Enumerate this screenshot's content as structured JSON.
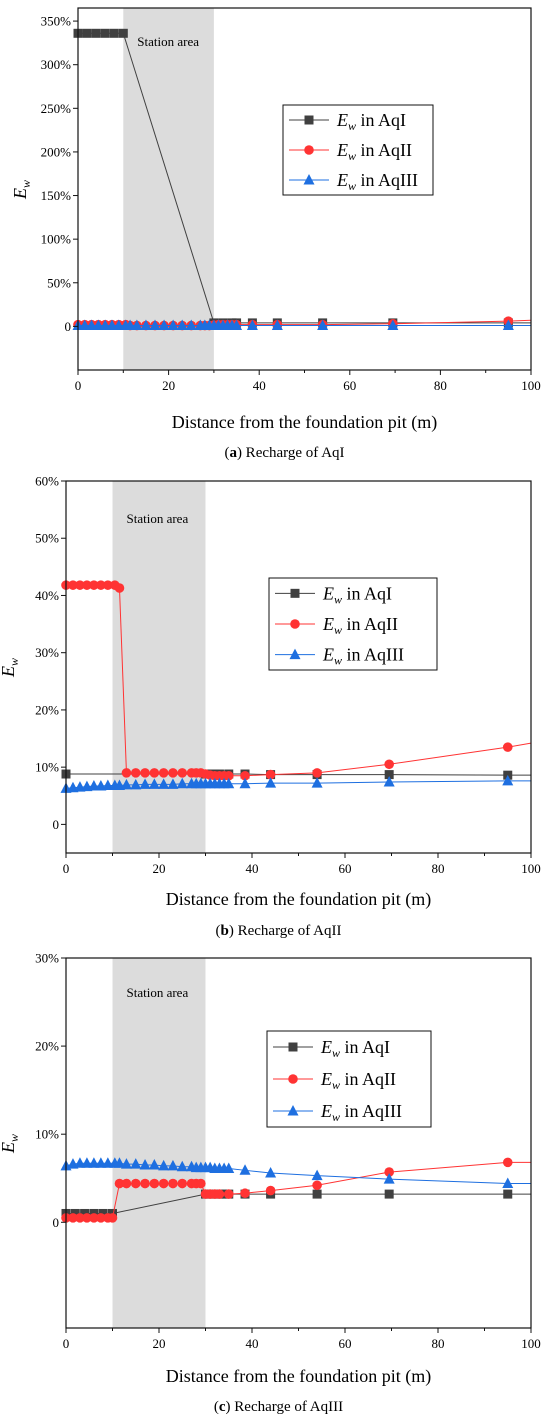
{
  "colors": {
    "aqI": "#404040",
    "aqII": "#ff3333",
    "aqIII": "#1e6fe0",
    "station": "#dcdcdc",
    "axis": "#111111"
  },
  "chart_data": [
    {
      "type": "line",
      "caption_label": "(a)",
      "caption_text": "Recharge of AqI",
      "station_label": "Station area",
      "station_range": [
        10,
        30
      ],
      "xlabel": "Distance from the foundation pit (m)",
      "ylabel_main": "E",
      "ylabel_sub": "w",
      "xlim": [
        0,
        100
      ],
      "ylim": [
        -50,
        365
      ],
      "xticks": [
        "0",
        "20",
        "40",
        "60",
        "80",
        "100"
      ],
      "yticks": [
        {
          "v": 0,
          "l": "0"
        },
        {
          "v": 50,
          "l": "50%"
        },
        {
          "v": 100,
          "l": "100%"
        },
        {
          "v": 150,
          "l": "150%"
        },
        {
          "v": 200,
          "l": "200%"
        },
        {
          "v": 250,
          "l": "250%"
        },
        {
          "v": 300,
          "l": "300%"
        },
        {
          "v": 350,
          "l": "350%"
        }
      ],
      "legend_position": "upper-right",
      "series": [
        {
          "name": "AqI",
          "marker": "square",
          "x": [
            0,
            2,
            4,
            6,
            8,
            10,
            30,
            32,
            34,
            35,
            38.5,
            44,
            54,
            69.5,
            95,
            100
          ],
          "y": [
            336,
            336,
            336,
            336,
            336,
            336,
            4,
            4,
            4,
            4,
            4,
            4,
            4,
            4,
            4,
            4
          ]
        },
        {
          "name": "AqII",
          "marker": "circle",
          "x": [
            0,
            1.5,
            3,
            4.5,
            6,
            7.5,
            9,
            10.5,
            11.5,
            13,
            15,
            17,
            19,
            21,
            23,
            25,
            27,
            28,
            29,
            30,
            31,
            32,
            33,
            34,
            35,
            38.5,
            44,
            54,
            69.5,
            95,
            100
          ],
          "y": [
            2,
            2,
            2,
            2,
            2,
            2,
            2,
            2,
            1,
            1,
            1,
            1,
            1,
            1,
            1,
            1,
            1,
            1,
            1,
            1.5,
            2,
            2,
            2,
            2,
            2,
            2,
            2,
            2,
            3,
            6,
            7
          ]
        },
        {
          "name": "AqIII",
          "marker": "triangle",
          "x": [
            0,
            1.5,
            3,
            4.5,
            6,
            7.5,
            9,
            10.5,
            11.5,
            13,
            15,
            17,
            19,
            21,
            23,
            25,
            27,
            28,
            29,
            30,
            31,
            32,
            33,
            34,
            35,
            38.5,
            44,
            54,
            69.5,
            95,
            100
          ],
          "y": [
            1,
            1,
            1,
            1,
            1,
            1,
            1,
            1,
            1,
            1,
            1,
            1,
            1,
            1,
            1,
            1,
            1,
            1,
            1,
            1,
            1,
            1,
            1,
            1,
            1,
            1,
            1,
            1,
            1,
            1,
            1
          ]
        }
      ]
    },
    {
      "type": "line",
      "caption_label": "(b)",
      "caption_text": "Recharge of AqII",
      "station_label": "Station area",
      "station_range": [
        10,
        30
      ],
      "xlabel": "Distance from the foundation pit (m)",
      "ylabel_main": "E",
      "ylabel_sub": "w",
      "xlim": [
        0,
        100
      ],
      "ylim": [
        -5,
        60
      ],
      "xticks": [
        "0",
        "20",
        "40",
        "60",
        "80",
        "100"
      ],
      "yticks": [
        {
          "v": 0,
          "l": "0"
        },
        {
          "v": 10,
          "l": "10%"
        },
        {
          "v": 20,
          "l": "20%"
        },
        {
          "v": 30,
          "l": "30%"
        },
        {
          "v": 40,
          "l": "40%"
        },
        {
          "v": 50,
          "l": "50%"
        },
        {
          "v": 60,
          "l": "60%"
        }
      ],
      "legend_position": "upper-right",
      "series": [
        {
          "name": "AqI",
          "marker": "square",
          "x": [
            0,
            30,
            31,
            32,
            33,
            35,
            38.5,
            44,
            54,
            69.5,
            95,
            100
          ],
          "y": [
            8.8,
            8.8,
            8.8,
            8.8,
            8.8,
            8.8,
            8.8,
            8.7,
            8.7,
            8.7,
            8.6,
            8.6
          ]
        },
        {
          "name": "AqII",
          "marker": "circle",
          "x": [
            0,
            1.5,
            3,
            4.5,
            6,
            7.5,
            9,
            10.5,
            11.5,
            13,
            15,
            17,
            19,
            21,
            23,
            25,
            27,
            28,
            29,
            30,
            31,
            32,
            33,
            34,
            35,
            38.5,
            44,
            54,
            69.5,
            95,
            100
          ],
          "y": [
            41.8,
            41.8,
            41.8,
            41.8,
            41.8,
            41.8,
            41.8,
            41.8,
            41.3,
            9,
            9,
            9,
            9,
            9,
            9,
            9,
            9,
            9,
            9,
            8.8,
            8.6,
            8.5,
            8.5,
            8.5,
            8.5,
            8.5,
            8.7,
            9,
            10.5,
            13.5,
            14.2
          ]
        },
        {
          "name": "AqIII",
          "marker": "triangle",
          "x": [
            0,
            1.5,
            3,
            4.5,
            6,
            7.5,
            9,
            10.5,
            11.5,
            13,
            15,
            17,
            19,
            21,
            23,
            25,
            27,
            28,
            29,
            30,
            31,
            32,
            33,
            34,
            35,
            38.5,
            44,
            54,
            69.5,
            95,
            100
          ],
          "y": [
            6.3,
            6.4,
            6.5,
            6.6,
            6.7,
            6.7,
            6.8,
            6.8,
            6.8,
            6.9,
            6.9,
            7,
            7,
            7,
            7,
            7.1,
            7.1,
            7.1,
            7.1,
            7.1,
            7.1,
            7.1,
            7.1,
            7.1,
            7.1,
            7.1,
            7.2,
            7.2,
            7.4,
            7.6,
            7.6
          ]
        }
      ]
    },
    {
      "type": "line",
      "caption_label": "(c)",
      "caption_text": "Recharge of AqIII",
      "station_label": "Station area",
      "station_range": [
        10,
        30
      ],
      "xlabel": "Distance from the foundation pit (m)",
      "ylabel_main": "E",
      "ylabel_sub": "w",
      "xlim": [
        0,
        100
      ],
      "ylim": [
        -12,
        30
      ],
      "xticks": [
        "0",
        "20",
        "40",
        "60",
        "80",
        "100"
      ],
      "yticks": [
        {
          "v": 0,
          "l": "0"
        },
        {
          "v": 10,
          "l": "10%"
        },
        {
          "v": 20,
          "l": "20%"
        },
        {
          "v": 30,
          "l": "30%"
        }
      ],
      "legend_position": "upper-right",
      "series": [
        {
          "name": "AqI",
          "marker": "square",
          "x": [
            0,
            2,
            4,
            6,
            8,
            10,
            30,
            31,
            32,
            33,
            34,
            35,
            38.5,
            44,
            54,
            69.5,
            95,
            100
          ],
          "y": [
            1,
            1,
            1,
            1,
            1,
            1,
            3.2,
            3.2,
            3.2,
            3.2,
            3.2,
            3.2,
            3.2,
            3.2,
            3.2,
            3.2,
            3.2,
            3.2
          ]
        },
        {
          "name": "AqII",
          "marker": "circle",
          "x": [
            0,
            1.5,
            3,
            4.5,
            6,
            7.5,
            9,
            10,
            11.5,
            13,
            15,
            17,
            19,
            21,
            23,
            25,
            27,
            28,
            29,
            30,
            31,
            32,
            33,
            35,
            38.5,
            44,
            54,
            69.5,
            95,
            100
          ],
          "y": [
            0.5,
            0.5,
            0.5,
            0.5,
            0.5,
            0.5,
            0.5,
            0.5,
            4.4,
            4.4,
            4.4,
            4.4,
            4.4,
            4.4,
            4.4,
            4.4,
            4.4,
            4.4,
            4.4,
            3.2,
            3.2,
            3.2,
            3.2,
            3.2,
            3.3,
            3.6,
            4.2,
            5.7,
            6.8,
            6.8
          ]
        },
        {
          "name": "AqIII",
          "marker": "triangle",
          "x": [
            0,
            1.5,
            3,
            4.5,
            6,
            7.5,
            9,
            10.5,
            11.5,
            13,
            15,
            17,
            19,
            21,
            23,
            25,
            27,
            28,
            29,
            30,
            31,
            32,
            33,
            34,
            35,
            38.5,
            44,
            54,
            69.5,
            95,
            100
          ],
          "y": [
            6.4,
            6.6,
            6.7,
            6.7,
            6.7,
            6.7,
            6.7,
            6.7,
            6.7,
            6.6,
            6.6,
            6.5,
            6.5,
            6.4,
            6.4,
            6.3,
            6.3,
            6.2,
            6.2,
            6.2,
            6.2,
            6.1,
            6.1,
            6.1,
            6.1,
            5.9,
            5.6,
            5.3,
            4.9,
            4.4,
            4.4
          ]
        }
      ]
    }
  ]
}
